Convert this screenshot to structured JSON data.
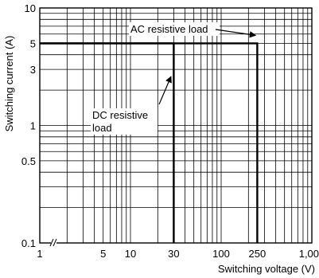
{
  "chart_data": {
    "type": "line",
    "title": "",
    "xlabel": "Switching voltage (V)",
    "ylabel": "Switching current (A)",
    "x_scale": "log",
    "y_scale": "log",
    "xlim": [
      1,
      1000
    ],
    "ylim": [
      0.1,
      10
    ],
    "x_ticks": [
      {
        "value": 1,
        "label": "1"
      },
      {
        "value": 5,
        "label": "5"
      },
      {
        "value": 10,
        "label": "10"
      },
      {
        "value": 30,
        "label": "30"
      },
      {
        "value": 100,
        "label": "100"
      },
      {
        "value": 250,
        "label": "250"
      },
      {
        "value": 1000,
        "label": "1,000"
      }
    ],
    "y_ticks": [
      {
        "value": 0.1,
        "label": "0.1"
      },
      {
        "value": 0.5,
        "label": "0.5"
      },
      {
        "value": 1,
        "label": "1"
      },
      {
        "value": 3,
        "label": "3"
      },
      {
        "value": 5,
        "label": "5"
      },
      {
        "value": 10,
        "label": "10"
      }
    ],
    "grid": true,
    "axis_break": true,
    "series": [
      {
        "name": "DC resistive load",
        "x": [
          1,
          30,
          30
        ],
        "y": [
          5,
          5,
          0.1
        ]
      },
      {
        "name": "AC resistive load",
        "x": [
          1,
          250,
          250
        ],
        "y": [
          5,
          5,
          0.1
        ]
      }
    ],
    "annotations": [
      {
        "text": "AC resistive load",
        "points_to": {
          "x": 250,
          "y": 5
        }
      },
      {
        "text": "DC resistive",
        "text2": "load",
        "points_to": {
          "x": 30,
          "y": 2.5
        }
      }
    ]
  }
}
